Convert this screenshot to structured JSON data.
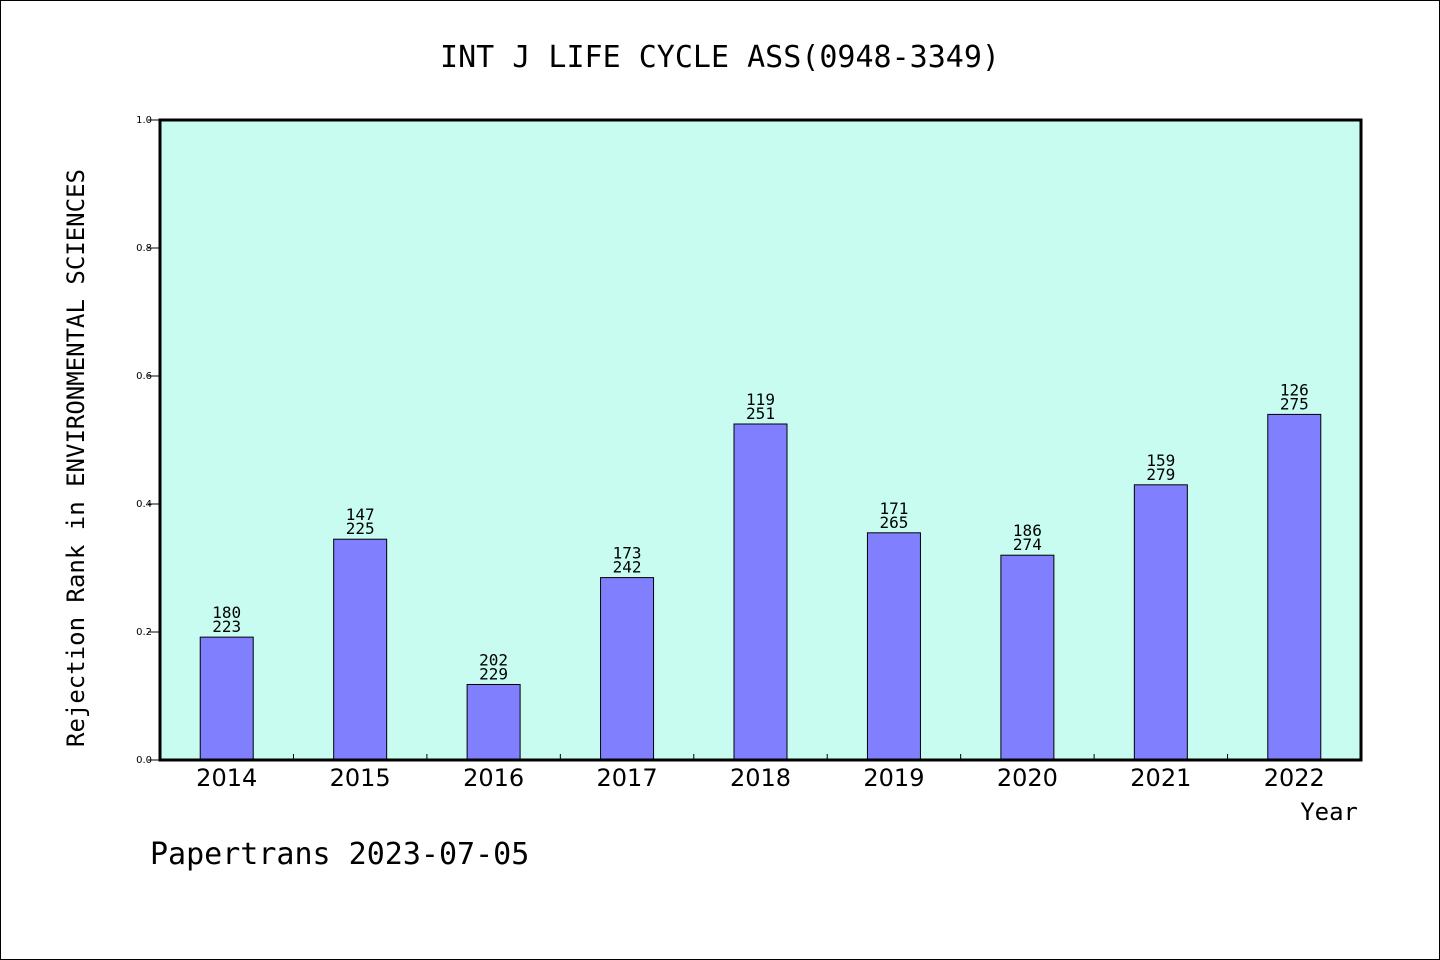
{
  "chart_data": {
    "type": "bar",
    "title": "INT J LIFE CYCLE ASS(0948-3349)",
    "xlabel": "Year",
    "ylabel": "Rejection Rank in ENVIRONMENTAL SCIENCES",
    "footer": "Papertrans 2023-07-05",
    "categories": [
      "2014",
      "2015",
      "2016",
      "2017",
      "2018",
      "2019",
      "2020",
      "2021",
      "2022"
    ],
    "values": [
      0.192,
      0.345,
      0.118,
      0.285,
      0.525,
      0.355,
      0.32,
      0.43,
      0.54
    ],
    "label_top": [
      "180",
      "147",
      "202",
      "173",
      "119",
      "171",
      "186",
      "159",
      "126"
    ],
    "label_bottom": [
      "223",
      "225",
      "229",
      "242",
      "251",
      "265",
      "274",
      "279",
      "275"
    ],
    "ylim": [
      0,
      1.0
    ],
    "yticks": [
      "0.0",
      "0.2",
      "0.4",
      "0.6",
      "0.8",
      "1.0"
    ],
    "grid": false,
    "colors": {
      "plot_background": "#c8fcf0",
      "bar_fill": "#8080ff",
      "bar_stroke": "#000000"
    }
  }
}
